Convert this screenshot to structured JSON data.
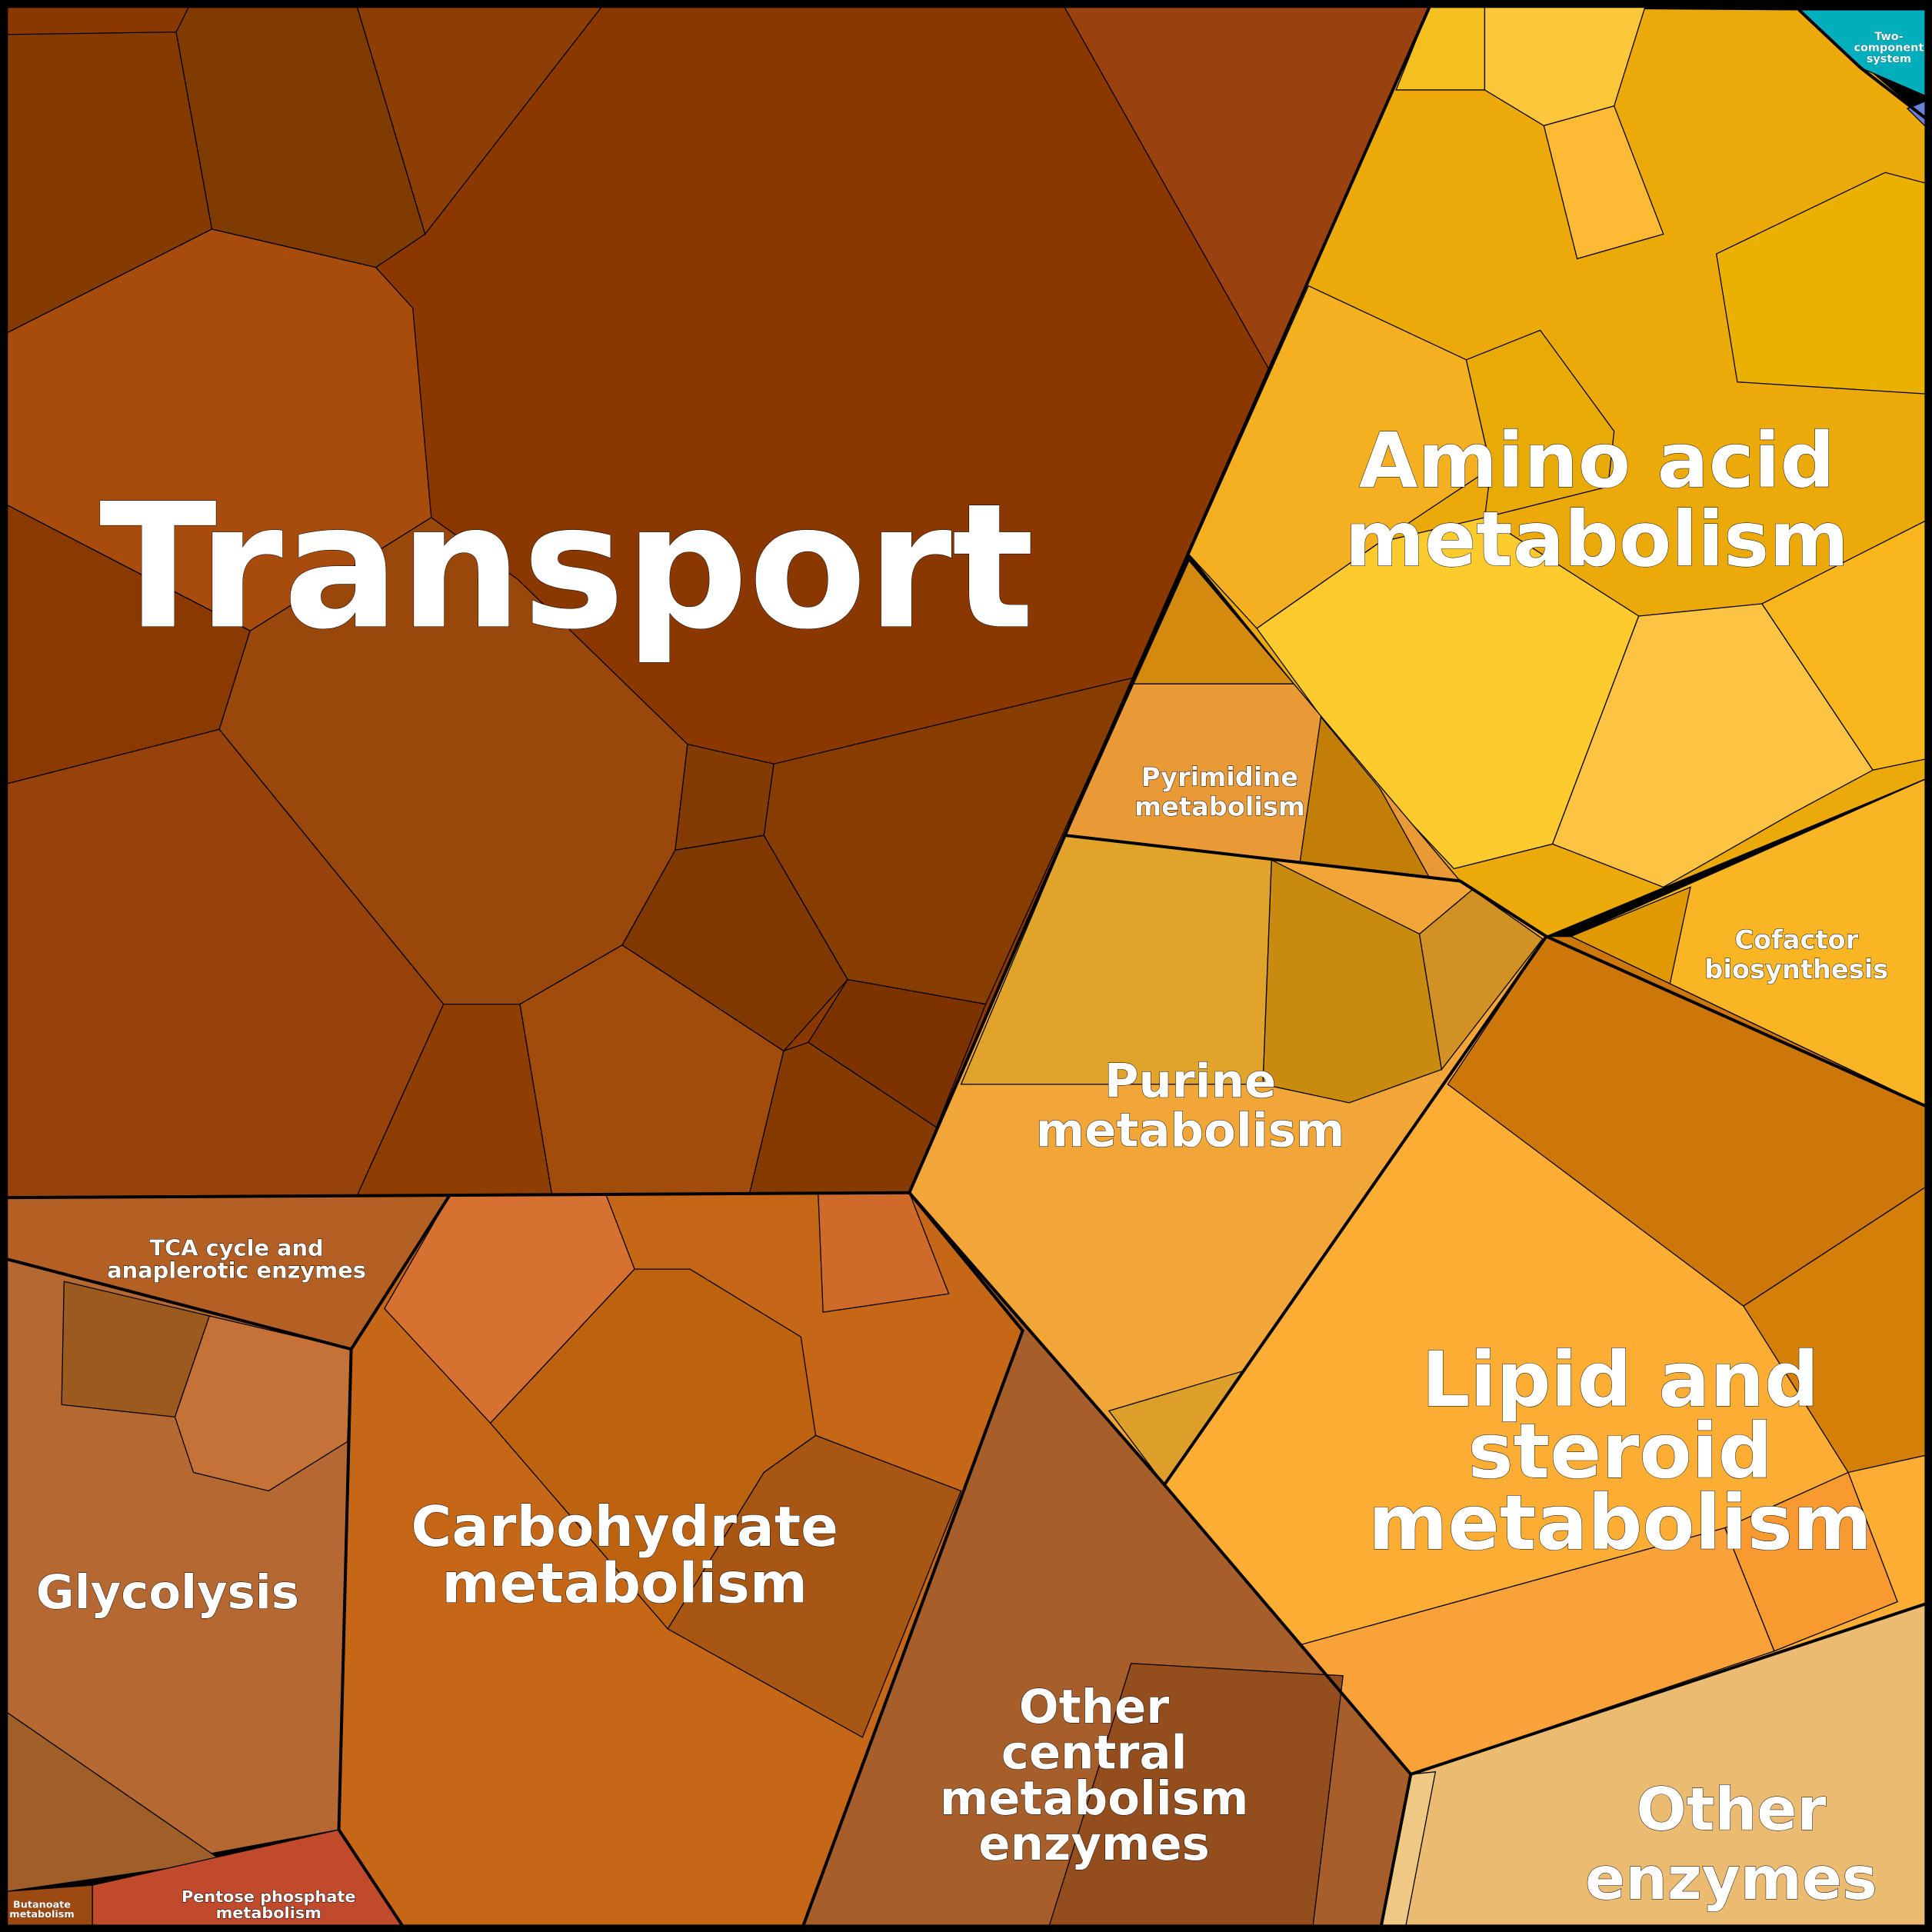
{
  "labels": [
    {
      "lines": [
        "Transport"
      ]
    },
    {
      "lines": [
        "Amino acid",
        "metabolism"
      ]
    },
    {
      "lines": [
        "Pyrimidine",
        "metabolism"
      ]
    },
    {
      "lines": [
        "Purine",
        "metabolism"
      ]
    },
    {
      "lines": [
        "Cofactor",
        "biosynthesis"
      ]
    },
    {
      "lines": [
        "Lipid and",
        "steroid",
        "metabolism"
      ]
    },
    {
      "lines": [
        "TCA cycle and",
        "anaplerotic enzymes"
      ]
    },
    {
      "lines": [
        "Carbohydrate",
        "metabolism"
      ]
    },
    {
      "lines": [
        "Glycolysis"
      ]
    },
    {
      "lines": [
        "Other",
        "central",
        "metabolism",
        "enzymes"
      ]
    },
    {
      "lines": [
        "Other",
        "enzymes"
      ]
    },
    {
      "lines": [
        "Pentose phosphate",
        "metabolism"
      ]
    },
    {
      "lines": [
        "Butanoate",
        "metabolism"
      ]
    },
    {
      "lines": [
        "Two-",
        "component",
        "system"
      ]
    }
  ]
}
